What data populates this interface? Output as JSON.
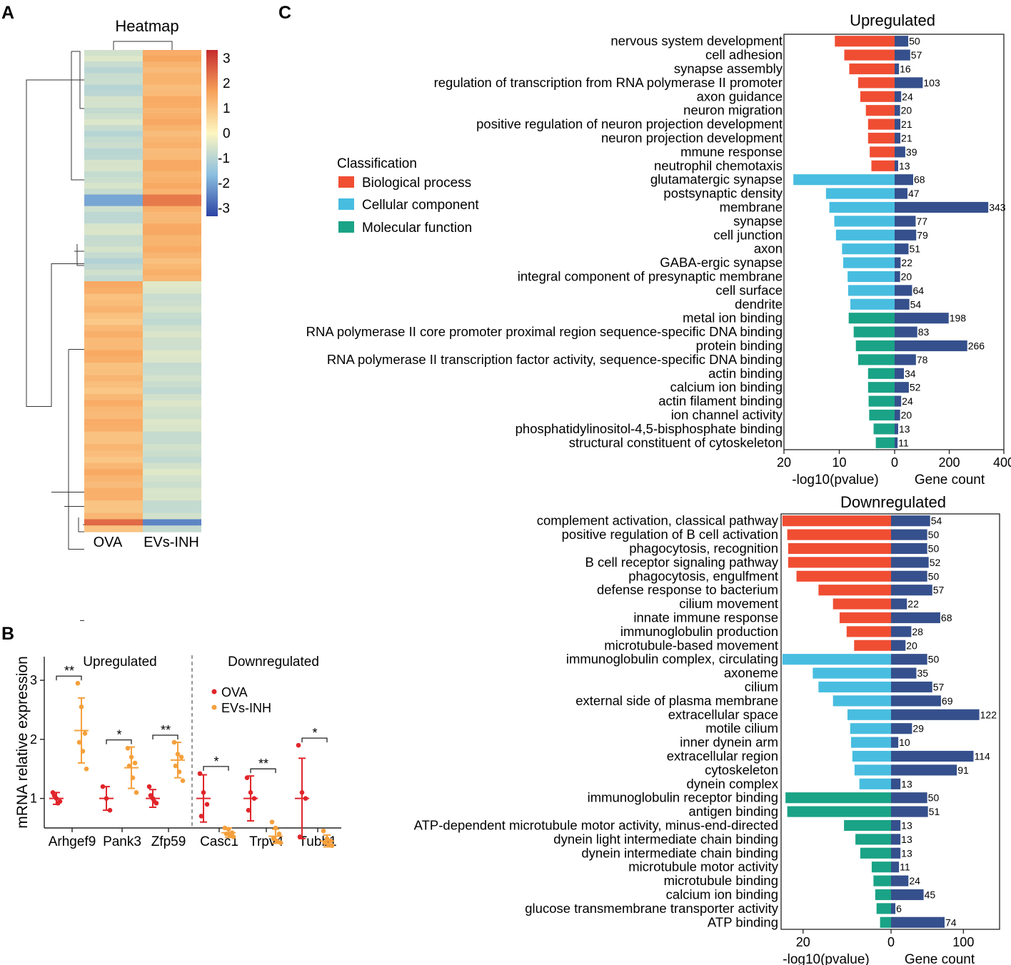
{
  "panels": {
    "a": "A",
    "b": "B",
    "c": "C"
  },
  "colors": {
    "bp": "#f04e33",
    "cc": "#48bde0",
    "mf": "#1aa386",
    "gene": "#35508c",
    "ova": "#e0252a",
    "evs": "#f5a03c"
  },
  "chart_data": [
    {
      "panel": "A",
      "type": "heatmap",
      "title": "Heatmap",
      "columns": [
        "OVA",
        "EVs-INH"
      ],
      "colorbar": {
        "min": -3,
        "max": 3,
        "ticks": [
          3,
          2,
          1,
          0,
          -1,
          -2,
          -3
        ],
        "tick_labels": [
          "3",
          "2",
          "1",
          "0",
          "-1",
          "-2",
          "-3"
        ]
      },
      "clusters": [
        {
          "name": "upregulated_in_EVs-INH",
          "row_share": 0.48,
          "ova_value": -0.7,
          "evs_value": 1.2
        },
        {
          "name": "downregulated_in_EVs-INH",
          "row_share": 0.52,
          "ova_value": 1.1,
          "evs_value": -0.6
        }
      ]
    },
    {
      "panel": "B",
      "type": "scatter",
      "ylabel": "mRNA relative expression",
      "ylim": [
        0.5,
        3.4
      ],
      "yticks": [
        1,
        2,
        3
      ],
      "ytick_labels": [
        "1",
        "2",
        "3"
      ],
      "groups": [
        {
          "label": "Upregulated",
          "genes": [
            "Arhgef9",
            "Pank3",
            "Zfp59"
          ]
        },
        {
          "label": "Downregulated",
          "genes": [
            "Casc1",
            "Trpv4",
            "Tubb1"
          ]
        }
      ],
      "legend": [
        "OVA",
        "EVs-INH"
      ],
      "genes": [
        {
          "name": "Arhgef9",
          "sig": "**",
          "ova": {
            "mean": 1.0,
            "sd": 0.1,
            "points": [
              1.1,
              1.0,
              0.95,
              1.05,
              0.92
            ]
          },
          "evs": {
            "mean": 2.15,
            "sd": 0.55,
            "points": [
              2.95,
              2.55,
              2.1,
              1.95,
              1.8,
              1.5
            ]
          }
        },
        {
          "name": "Pank3",
          "sig": "*",
          "ova": {
            "mean": 1.0,
            "sd": 0.2,
            "points": [
              1.2,
              1.0,
              0.8
            ]
          },
          "evs": {
            "mean": 1.52,
            "sd": 0.35,
            "points": [
              1.85,
              1.7,
              1.6,
              1.55,
              1.35,
              1.1
            ]
          }
        },
        {
          "name": "Zfp59",
          "sig": "**",
          "ova": {
            "mean": 1.0,
            "sd": 0.15,
            "points": [
              1.2,
              1.0,
              0.92,
              1.05,
              0.95
            ]
          },
          "evs": {
            "mean": 1.65,
            "sd": 0.3,
            "points": [
              1.95,
              1.75,
              1.7,
              1.55,
              1.45,
              1.3
            ]
          }
        },
        {
          "name": "Casc1",
          "sig": "*",
          "ova": {
            "mean": 1.0,
            "sd": 0.4,
            "points": [
              1.42,
              1.1,
              0.9,
              0.7
            ]
          },
          "evs": {
            "mean": 0.42,
            "sd": 0.08,
            "points": [
              0.5,
              0.48,
              0.42,
              0.4,
              0.38,
              0.35
            ]
          }
        },
        {
          "name": "Trpv4",
          "sig": "**",
          "ova": {
            "mean": 1.0,
            "sd": 0.38,
            "points": [
              1.35,
              1.1,
              1.0,
              0.8
            ]
          },
          "evs": {
            "mean": 0.36,
            "sd": 0.12,
            "points": [
              0.6,
              0.5,
              0.4,
              0.32,
              0.28,
              0.25
            ]
          }
        },
        {
          "name": "Tubb1",
          "sig": "*",
          "ova": {
            "mean": 1.0,
            "sd": 0.68,
            "points": [
              1.9,
              1.1,
              1.0,
              0.35
            ]
          },
          "evs": {
            "mean": 0.28,
            "sd": 0.1,
            "points": [
              0.45,
              0.32,
              0.28,
              0.25,
              0.22,
              0.2
            ]
          }
        }
      ]
    },
    {
      "panel": "C",
      "type": "bar",
      "title": "Upregulated",
      "left_axis": {
        "label": "-log10(pvalue)",
        "max": 20,
        "ticks": [
          20,
          10,
          0
        ],
        "tick_labels": [
          "20",
          "10",
          "0"
        ]
      },
      "right_axis": {
        "label": "Gene count",
        "max": 400,
        "ticks": [
          200,
          400
        ],
        "tick_labels": [
          "200",
          "400"
        ]
      },
      "legend": {
        "title": "Classification",
        "items": [
          {
            "key": "bp",
            "label": "Biological process"
          },
          {
            "key": "cc",
            "label": "Cellular component"
          },
          {
            "key": "mf",
            "label": "Molecular function"
          }
        ]
      },
      "terms": [
        {
          "name": "nervous system development",
          "cls": "bp",
          "logp": 10.8,
          "count": 50,
          "count_label": "50"
        },
        {
          "name": "cell adhesion",
          "cls": "bp",
          "logp": 9.1,
          "count": 57,
          "count_label": "57"
        },
        {
          "name": "synapse assembly",
          "cls": "bp",
          "logp": 8.2,
          "count": 16,
          "count_label": "16"
        },
        {
          "name": "regulation of transcription from RNA polymerase II promoter",
          "cls": "bp",
          "logp": 6.6,
          "count": 103,
          "count_label": "103"
        },
        {
          "name": "axon guidance",
          "cls": "bp",
          "logp": 6.2,
          "count": 24,
          "count_label": "24"
        },
        {
          "name": "neuron migration",
          "cls": "bp",
          "logp": 5.2,
          "count": 20,
          "count_label": "20"
        },
        {
          "name": "positive regulation of neuron projection development",
          "cls": "bp",
          "logp": 4.8,
          "count": 21,
          "count_label": "21"
        },
        {
          "name": "neuron projection development",
          "cls": "bp",
          "logp": 4.8,
          "count": 21,
          "count_label": "21"
        },
        {
          "name": "mmune response",
          "cls": "bp",
          "logp": 4.5,
          "count": 39,
          "count_label": "39"
        },
        {
          "name": "neutrophil chemotaxis",
          "cls": "bp",
          "logp": 4.2,
          "count": 13,
          "count_label": "13"
        },
        {
          "name": "glutamatergic synapse",
          "cls": "cc",
          "logp": 18.3,
          "count": 68,
          "count_label": "68"
        },
        {
          "name": "postsynaptic density",
          "cls": "cc",
          "logp": 12.4,
          "count": 47,
          "count_label": "47"
        },
        {
          "name": "membrane",
          "cls": "cc",
          "logp": 11.8,
          "count": 343,
          "count_label": "343"
        },
        {
          "name": "synapse",
          "cls": "cc",
          "logp": 10.9,
          "count": 77,
          "count_label": "77"
        },
        {
          "name": "cell junction",
          "cls": "cc",
          "logp": 10.6,
          "count": 79,
          "count_label": "79"
        },
        {
          "name": "axon",
          "cls": "cc",
          "logp": 9.5,
          "count": 51,
          "count_label": "51"
        },
        {
          "name": "GABA-ergic synapse",
          "cls": "cc",
          "logp": 9.3,
          "count": 22,
          "count_label": "22"
        },
        {
          "name": "integral component of presynaptic membrane",
          "cls": "cc",
          "logp": 8.5,
          "count": 20,
          "count_label": "20"
        },
        {
          "name": "cell surface",
          "cls": "cc",
          "logp": 8.4,
          "count": 64,
          "count_label": "64"
        },
        {
          "name": "dendrite",
          "cls": "cc",
          "logp": 8.0,
          "count": 54,
          "count_label": "54"
        },
        {
          "name": "metal ion binding",
          "cls": "mf",
          "logp": 8.3,
          "count": 198,
          "count_label": "198"
        },
        {
          "name": "RNA polymerase II core promoter proximal region sequence-specific DNA binding",
          "cls": "mf",
          "logp": 7.4,
          "count": 83,
          "count_label": "83"
        },
        {
          "name": "protein binding",
          "cls": "mf",
          "logp": 7.0,
          "count": 266,
          "count_label": "266"
        },
        {
          "name": "RNA polymerase II transcription factor activity, sequence-specific DNA binding",
          "cls": "mf",
          "logp": 6.6,
          "count": 78,
          "count_label": "78"
        },
        {
          "name": "actin binding",
          "cls": "mf",
          "logp": 4.8,
          "count": 34,
          "count_label": "34"
        },
        {
          "name": "calcium ion binding",
          "cls": "mf",
          "logp": 4.8,
          "count": 52,
          "count_label": "52"
        },
        {
          "name": "actin filament binding",
          "cls": "mf",
          "logp": 4.7,
          "count": 24,
          "count_label": "24"
        },
        {
          "name": "ion channel activity",
          "cls": "mf",
          "logp": 4.6,
          "count": 20,
          "count_label": "20"
        },
        {
          "name": "phosphatidylinositol-4,5-bisphosphate binding",
          "cls": "mf",
          "logp": 3.8,
          "count": 13,
          "count_label": "13"
        },
        {
          "name": "structural constituent of cytoskeleton",
          "cls": "mf",
          "logp": 3.4,
          "count": 11,
          "count_label": "11"
        }
      ]
    },
    {
      "panel": "C",
      "type": "bar",
      "title": "Downregulated",
      "left_axis": {
        "label": "-log10(pvalue)",
        "max": 25,
        "ticks": [
          20,
          0
        ],
        "tick_labels": [
          "20",
          "0"
        ]
      },
      "right_axis": {
        "label": "Gene count",
        "max": 150,
        "ticks": [
          100
        ],
        "tick_labels": [
          "100"
        ]
      },
      "terms": [
        {
          "name": "complement activation, classical pathway",
          "cls": "bp",
          "logp": 24.7,
          "count": 54,
          "count_label": "54"
        },
        {
          "name": "positive regulation of B cell activation",
          "cls": "bp",
          "logp": 23.6,
          "count": 50,
          "count_label": "50"
        },
        {
          "name": "phagocytosis, recognition",
          "cls": "bp",
          "logp": 23.4,
          "count": 50,
          "count_label": "50"
        },
        {
          "name": "B cell receptor signaling pathway",
          "cls": "bp",
          "logp": 23.4,
          "count": 52,
          "count_label": "52"
        },
        {
          "name": "phagocytosis, engulfment",
          "cls": "bp",
          "logp": 21.5,
          "count": 50,
          "count_label": "50"
        },
        {
          "name": "defense response to bacterium",
          "cls": "bp",
          "logp": 16.5,
          "count": 57,
          "count_label": "57"
        },
        {
          "name": "cilium movement",
          "cls": "bp",
          "logp": 13.2,
          "count": 22,
          "count_label": "22"
        },
        {
          "name": "innate immune response",
          "cls": "bp",
          "logp": 11.7,
          "count": 68,
          "count_label": "68"
        },
        {
          "name": "immunoglobulin production",
          "cls": "bp",
          "logp": 10.1,
          "count": 28,
          "count_label": "28"
        },
        {
          "name": "microtubule-based movement",
          "cls": "bp",
          "logp": 8.4,
          "count": 20,
          "count_label": "20"
        },
        {
          "name": "immunoglobulin complex, circulating",
          "cls": "cc",
          "logp": 24.7,
          "count": 50,
          "count_label": "50"
        },
        {
          "name": "axoneme",
          "cls": "cc",
          "logp": 17.8,
          "count": 35,
          "count_label": "35"
        },
        {
          "name": "cilium",
          "cls": "cc",
          "logp": 16.5,
          "count": 57,
          "count_label": "57"
        },
        {
          "name": "external side of plasma membrane",
          "cls": "cc",
          "logp": 13.2,
          "count": 69,
          "count_label": "69"
        },
        {
          "name": "extracellular space",
          "cls": "cc",
          "logp": 9.9,
          "count": 122,
          "count_label": "122"
        },
        {
          "name": "motile cilium",
          "cls": "cc",
          "logp": 9.3,
          "count": 29,
          "count_label": "29"
        },
        {
          "name": "inner dynein arm",
          "cls": "cc",
          "logp": 9.1,
          "count": 10,
          "count_label": "10"
        },
        {
          "name": "extracellular region",
          "cls": "cc",
          "logp": 8.8,
          "count": 114,
          "count_label": "114"
        },
        {
          "name": "cytoskeleton",
          "cls": "cc",
          "logp": 8.3,
          "count": 91,
          "count_label": "91"
        },
        {
          "name": "dynein complex",
          "cls": "cc",
          "logp": 7.2,
          "count": 13,
          "count_label": "13"
        },
        {
          "name": "immunoglobulin receptor binding",
          "cls": "mf",
          "logp": 24.0,
          "count": 50,
          "count_label": "50"
        },
        {
          "name": "antigen binding",
          "cls": "mf",
          "logp": 23.6,
          "count": 51,
          "count_label": "51"
        },
        {
          "name": "ATP-dependent microtubule motor activity, minus-end-directed",
          "cls": "mf",
          "logp": 10.7,
          "count": 13,
          "count_label": "13"
        },
        {
          "name": "dynein light intermediate chain binding",
          "cls": "mf",
          "logp": 8.1,
          "count": 13,
          "count_label": "13"
        },
        {
          "name": "dynein intermediate chain binding",
          "cls": "mf",
          "logp": 7.0,
          "count": 13,
          "count_label": "13"
        },
        {
          "name": "microtubule motor activity",
          "cls": "mf",
          "logp": 4.4,
          "count": 11,
          "count_label": "11"
        },
        {
          "name": "microtubule binding",
          "cls": "mf",
          "logp": 4.0,
          "count": 24,
          "count_label": "24"
        },
        {
          "name": "calcium ion binding",
          "cls": "mf",
          "logp": 3.6,
          "count": 45,
          "count_label": "45"
        },
        {
          "name": "glucose transmembrane transporter activity",
          "cls": "mf",
          "logp": 3.3,
          "count": 6,
          "count_label": "6"
        },
        {
          "name": "ATP binding",
          "cls": "mf",
          "logp": 2.5,
          "count": 74,
          "count_label": "74"
        }
      ]
    }
  ]
}
